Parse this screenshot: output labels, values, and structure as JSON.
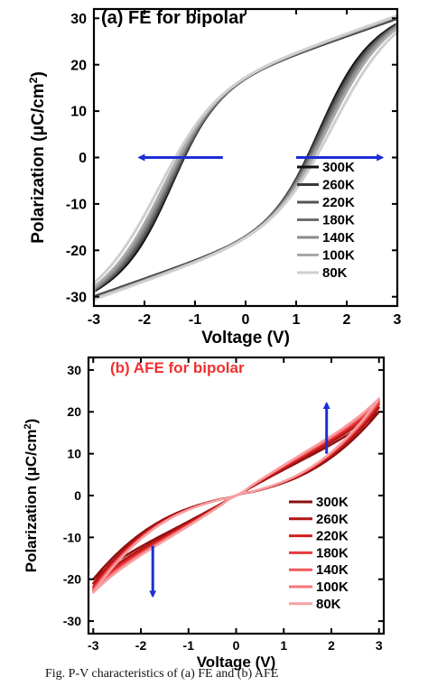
{
  "chart_data": [
    {
      "type": "line",
      "title": "(a) FE for bipolar",
      "xlabel": "Voltage (V)",
      "ylabel": "Polarization (μC/cm²)",
      "ylabel_parts": {
        "main": "Polarization (μC/cm",
        "sup": "2",
        "close": ")"
      },
      "xlim": [
        -3,
        3
      ],
      "ylim": [
        -32,
        32
      ],
      "xticks": [
        "-3",
        "-2",
        "-1",
        "0",
        "1",
        "2",
        "3"
      ],
      "yticks": [
        "-30",
        "-20",
        "-10",
        "0",
        "10",
        "20",
        "30"
      ],
      "legend_position": "bottom-right",
      "title_color": "#000000",
      "annotations": [
        {
          "type": "arrow",
          "from": [
            -0.45,
            0
          ],
          "to": [
            -2.1,
            0
          ],
          "color": "#1a2fd6"
        },
        {
          "type": "arrow",
          "from": [
            1.0,
            0
          ],
          "to": [
            2.7,
            0
          ],
          "color": "#1a2fd6"
        }
      ],
      "series": [
        {
          "name": "300K",
          "color": "#111111",
          "Ec": 1.45,
          "Pmax": 30,
          "Pr": 18,
          "a": 0.5
        },
        {
          "name": "260K",
          "color": "#3a3a3a",
          "Ec": 1.47,
          "Pmax": 30,
          "Pr": 18.2,
          "a": 0.52
        },
        {
          "name": "220K",
          "color": "#555555",
          "Ec": 1.5,
          "Pmax": 30.2,
          "Pr": 18.4,
          "a": 0.53
        },
        {
          "name": "180K",
          "color": "#6e6e6e",
          "Ec": 1.53,
          "Pmax": 30.3,
          "Pr": 18.6,
          "a": 0.55
        },
        {
          "name": "140K",
          "color": "#8a8a8a",
          "Ec": 1.57,
          "Pmax": 30.4,
          "Pr": 18.8,
          "a": 0.56
        },
        {
          "name": "100K",
          "color": "#a8a8a8",
          "Ec": 1.62,
          "Pmax": 30.5,
          "Pr": 19,
          "a": 0.58
        },
        {
          "name": "80K",
          "color": "#cfcfcf",
          "Ec": 1.72,
          "Pmax": 30.6,
          "Pr": 19.3,
          "a": 0.62
        }
      ]
    },
    {
      "type": "line",
      "title": "(b) AFE for bipolar",
      "xlabel": "Voltage (V)",
      "ylabel": "Polarization (μC/cm²)",
      "ylabel_parts": {
        "main": "Polarization (μC/cm",
        "sup": "2",
        "close": ")"
      },
      "xlim": [
        -3.1,
        3.1
      ],
      "ylim": [
        -33,
        33
      ],
      "xticks": [
        "-3",
        "-2",
        "-1",
        "0",
        "1",
        "2",
        "3"
      ],
      "yticks": [
        "-30",
        "-20",
        "-10",
        "0",
        "10",
        "20",
        "30"
      ],
      "legend_position": "bottom-right",
      "title_color": "#f03030",
      "annotations": [
        {
          "type": "arrow",
          "from": [
            1.9,
            10
          ],
          "to": [
            1.9,
            22
          ],
          "color": "#1a2fd6"
        },
        {
          "type": "arrow",
          "from": [
            -1.75,
            -12
          ],
          "to": [
            -1.75,
            -24
          ],
          "color": "#1a2fd6"
        }
      ],
      "series": [
        {
          "name": "300K",
          "color": "#8b0f0f",
          "Pmax": 20,
          "slope": 3.2,
          "lag": 3.6
        },
        {
          "name": "260K",
          "color": "#b01414",
          "Pmax": 21,
          "slope": 3.4,
          "lag": 3.8
        },
        {
          "name": "220K",
          "color": "#d41d1d",
          "Pmax": 21.8,
          "slope": 3.6,
          "lag": 4.0
        },
        {
          "name": "180K",
          "color": "#e8393e",
          "Pmax": 22.3,
          "slope": 3.8,
          "lag": 4.2
        },
        {
          "name": "140K",
          "color": "#f0585c",
          "Pmax": 22.6,
          "slope": 3.9,
          "lag": 4.3
        },
        {
          "name": "100K",
          "color": "#f3777b",
          "Pmax": 22.9,
          "slope": 4.0,
          "lag": 4.4
        },
        {
          "name": "80K",
          "color": "#f7a0a3",
          "Pmax": 23.2,
          "slope": 4.1,
          "lag": 4.5
        }
      ]
    }
  ],
  "caption": "Fig. P-V characteristics of (a) FE and (b) AFE"
}
